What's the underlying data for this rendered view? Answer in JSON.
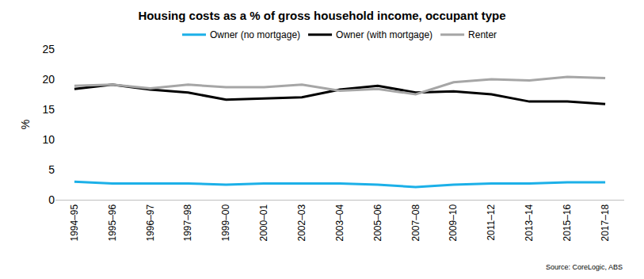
{
  "chart_data": {
    "type": "line",
    "title": "Housing costs as a % of gross household income, occupant type",
    "y_label": "%",
    "categories": [
      "1994–95",
      "1995–96",
      "1996–97",
      "1997–98",
      "1999–00",
      "2000–01",
      "2002–03",
      "2003–04",
      "2005–06",
      "2007–08",
      "2009–10",
      "2011–12",
      "2013–14",
      "2015–16",
      "2017–18"
    ],
    "series": [
      {
        "name": "Owner (no mortgage)",
        "color": "#1cb0e8",
        "values": [
          3.0,
          2.7,
          2.7,
          2.7,
          2.5,
          2.7,
          2.7,
          2.7,
          2.5,
          2.1,
          2.5,
          2.7,
          2.7,
          2.9,
          2.9
        ]
      },
      {
        "name": "Owner (with mortgage)",
        "color": "#000000",
        "values": [
          18.4,
          19.1,
          18.3,
          17.8,
          16.6,
          16.8,
          17.0,
          18.3,
          18.9,
          17.8,
          18.0,
          17.5,
          16.3,
          16.3,
          15.9
        ]
      },
      {
        "name": "Renter",
        "color": "#a6a6a6",
        "values": [
          18.9,
          19.1,
          18.5,
          19.1,
          18.7,
          18.7,
          19.1,
          18.1,
          18.4,
          17.5,
          19.5,
          20.0,
          19.8,
          20.4,
          20.2
        ]
      }
    ],
    "ylim": [
      0,
      25
    ],
    "yticks": [
      0,
      5,
      10,
      15,
      20,
      25
    ],
    "grid": false,
    "legend": "top",
    "annotations": [
      "Source: CoreLogic, ABS"
    ]
  }
}
